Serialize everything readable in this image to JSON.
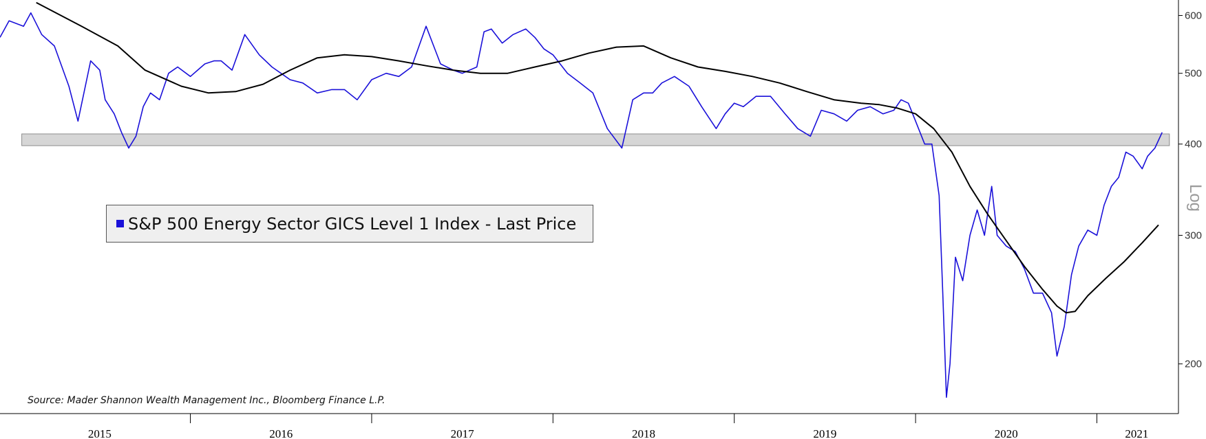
{
  "chart_data": {
    "type": "line",
    "title": "",
    "legend": {
      "placement": "middle-left",
      "entries": [
        {
          "label": "S&P 500 Energy Sector GICS Level 1 Index - Last Price",
          "color": "#1a10d9"
        }
      ]
    },
    "source": "Source: Mader Shannon Wealth Management Inc., Bloomberg Finance L.P.",
    "xlabel": "",
    "ylabel": "",
    "y_scale_label": "Log",
    "y_scale": "log",
    "y_axis_side": "right",
    "grid": false,
    "xlim": [
      2014.95,
      2021.45
    ],
    "ylim": [
      171,
      630
    ],
    "x_ticks": [
      {
        "label": "2015",
        "x": 2015.5
      },
      {
        "label": "2016",
        "x": 2016.5
      },
      {
        "label": "2017",
        "x": 2017.5
      },
      {
        "label": "2018",
        "x": 2018.5
      },
      {
        "label": "2019",
        "x": 2019.5
      },
      {
        "label": "2020",
        "x": 2020.5
      },
      {
        "label": "2021",
        "x": 2021.22
      }
    ],
    "x_separators": [
      2016.0,
      2017.0,
      2018.0,
      2019.0,
      2020.0,
      2021.0
    ],
    "y_ticks": [
      200,
      300,
      400,
      500,
      600
    ],
    "reference_band": {
      "low": 398,
      "high": 413,
      "x_start": 2015.07,
      "x_end": 2021.4,
      "color": "#d6d6d6"
    },
    "series": [
      {
        "name": "S&P 500 Energy Sector GICS Level 1 Index - Last Price",
        "color": "#1a10d9",
        "x": [
          2014.95,
          2015.0,
          2015.08,
          2015.12,
          2015.18,
          2015.25,
          2015.33,
          2015.38,
          2015.45,
          2015.5,
          2015.53,
          2015.58,
          2015.62,
          2015.66,
          2015.7,
          2015.74,
          2015.78,
          2015.83,
          2015.88,
          2015.93,
          2016.0,
          2016.04,
          2016.08,
          2016.13,
          2016.17,
          2016.23,
          2016.3,
          2016.38,
          2016.45,
          2016.5,
          2016.55,
          2016.62,
          2016.7,
          2016.78,
          2016.85,
          2016.92,
          2017.0,
          2017.08,
          2017.15,
          2017.22,
          2017.3,
          2017.38,
          2017.45,
          2017.5,
          2017.58,
          2017.62,
          2017.66,
          2017.72,
          2017.78,
          2017.85,
          2017.9,
          2017.95,
          2018.0,
          2018.08,
          2018.15,
          2018.22,
          2018.3,
          2018.38,
          2018.44,
          2018.5,
          2018.55,
          2018.6,
          2018.67,
          2018.75,
          2018.82,
          2018.9,
          2018.95,
          2019.0,
          2019.05,
          2019.12,
          2019.2,
          2019.28,
          2019.35,
          2019.42,
          2019.48,
          2019.55,
          2019.62,
          2019.68,
          2019.75,
          2019.82,
          2019.88,
          2019.92,
          2019.96,
          2020.0,
          2020.05,
          2020.09,
          2020.13,
          2020.15,
          2020.17,
          2020.19,
          2020.22,
          2020.26,
          2020.3,
          2020.34,
          2020.38,
          2020.42,
          2020.45,
          2020.5,
          2020.55,
          2020.6,
          2020.65,
          2020.7,
          2020.75,
          2020.78,
          2020.82,
          2020.86,
          2020.9,
          2020.95,
          2021.0,
          2021.04,
          2021.08,
          2021.12,
          2021.16,
          2021.2,
          2021.25,
          2021.28,
          2021.32,
          2021.36
        ],
        "values": [
          560,
          590,
          580,
          605,
          565,
          545,
          480,
          430,
          520,
          505,
          460,
          440,
          415,
          395,
          410,
          450,
          470,
          460,
          500,
          510,
          495,
          505,
          515,
          520,
          520,
          505,
          565,
          530,
          510,
          500,
          490,
          485,
          470,
          475,
          475,
          460,
          490,
          500,
          495,
          510,
          580,
          515,
          505,
          500,
          510,
          570,
          575,
          550,
          565,
          575,
          560,
          540,
          530,
          500,
          485,
          470,
          420,
          395,
          460,
          470,
          470,
          485,
          495,
          480,
          450,
          420,
          440,
          455,
          450,
          465,
          465,
          440,
          420,
          410,
          445,
          440,
          430,
          445,
          450,
          440,
          445,
          460,
          455,
          430,
          400,
          400,
          340,
          250,
          180,
          200,
          280,
          260,
          300,
          325,
          300,
          350,
          300,
          290,
          285,
          270,
          250,
          250,
          235,
          205,
          225,
          265,
          290,
          305,
          300,
          330,
          350,
          360,
          390,
          385,
          370,
          385,
          395,
          415
        ]
      },
      {
        "name": "",
        "color": "#000000",
        "x": [
          2015.15,
          2015.4,
          2015.6,
          2015.75,
          2015.95,
          2016.1,
          2016.25,
          2016.4,
          2016.55,
          2016.7,
          2016.85,
          2017.0,
          2017.15,
          2017.3,
          2017.45,
          2017.6,
          2017.75,
          2017.9,
          2018.05,
          2018.2,
          2018.35,
          2018.5,
          2018.65,
          2018.8,
          2018.95,
          2019.1,
          2019.25,
          2019.4,
          2019.55,
          2019.7,
          2019.8,
          2019.9,
          2020.0,
          2020.1,
          2020.2,
          2020.3,
          2020.4,
          2020.5,
          2020.6,
          2020.7,
          2020.78,
          2020.83,
          2020.88,
          2020.95,
          2021.05,
          2021.15,
          2021.25,
          2021.34
        ],
        "values": [
          625,
          580,
          545,
          505,
          480,
          470,
          472,
          483,
          505,
          525,
          530,
          527,
          520,
          512,
          505,
          500,
          500,
          510,
          520,
          533,
          543,
          545,
          525,
          510,
          503,
          495,
          485,
          472,
          460,
          455,
          453,
          448,
          440,
          420,
          390,
          350,
          320,
          295,
          272,
          253,
          240,
          235,
          236,
          248,
          262,
          276,
          293,
          310
        ]
      }
    ]
  }
}
